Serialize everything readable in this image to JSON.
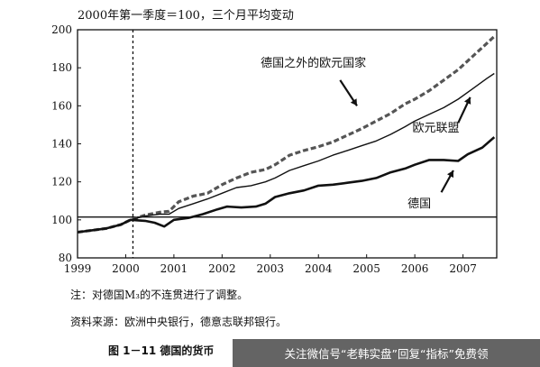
{
  "chart_data": {
    "type": "line",
    "title": "2000年第一季度＝100，三个月平均变动",
    "x_ticks": [
      "1999",
      "2000",
      "2001",
      "2002",
      "2003",
      "2004",
      "2005",
      "2006",
      "2007"
    ],
    "y_ticks": [
      "200",
      "180",
      "160",
      "140",
      "120",
      "100",
      "80"
    ],
    "xlim": [
      1999.0,
      2007.7
    ],
    "ylim": [
      80,
      200
    ],
    "reference_line_y": 101.5,
    "vertical_marker_x": 2000.15,
    "series": [
      {
        "name": "德国之外的欧元国家",
        "style": "dashed-bold",
        "color": "#555555",
        "points": [
          [
            1999.0,
            93.5
          ],
          [
            1999.3,
            94.5
          ],
          [
            1999.6,
            95.5
          ],
          [
            1999.9,
            97.5
          ],
          [
            2000.1,
            100.0
          ],
          [
            2000.4,
            102.5
          ],
          [
            2000.7,
            104.0
          ],
          [
            2000.9,
            104.5
          ],
          [
            2001.1,
            109.5
          ],
          [
            2001.4,
            112.5
          ],
          [
            2001.7,
            114.0
          ],
          [
            2002.0,
            118.5
          ],
          [
            2002.3,
            122.0
          ],
          [
            2002.6,
            125.0
          ],
          [
            2002.9,
            126.5
          ],
          [
            2003.1,
            129.0
          ],
          [
            2003.4,
            134.0
          ],
          [
            2003.7,
            136.5
          ],
          [
            2004.0,
            138.5
          ],
          [
            2004.3,
            141.0
          ],
          [
            2004.6,
            144.5
          ],
          [
            2004.9,
            148.0
          ],
          [
            2005.2,
            152.0
          ],
          [
            2005.5,
            156.0
          ],
          [
            2005.8,
            161.0
          ],
          [
            2006.0,
            163.5
          ],
          [
            2006.3,
            168.0
          ],
          [
            2006.6,
            173.5
          ],
          [
            2006.9,
            179.0
          ],
          [
            2007.2,
            186.0
          ],
          [
            2007.5,
            193.0
          ],
          [
            2007.65,
            196.5
          ]
        ]
      },
      {
        "name": "欧元联盟",
        "style": "solid-thin",
        "color": "#111111",
        "points": [
          [
            1999.0,
            93.5
          ],
          [
            1999.3,
            94.5
          ],
          [
            1999.6,
            95.5
          ],
          [
            1999.9,
            97.5
          ],
          [
            2000.1,
            100.0
          ],
          [
            2000.4,
            102.0
          ],
          [
            2000.7,
            103.0
          ],
          [
            2000.9,
            103.0
          ],
          [
            2001.1,
            106.0
          ],
          [
            2001.4,
            108.5
          ],
          [
            2001.7,
            111.0
          ],
          [
            2002.0,
            114.0
          ],
          [
            2002.3,
            117.0
          ],
          [
            2002.6,
            118.0
          ],
          [
            2002.9,
            120.0
          ],
          [
            2003.1,
            122.0
          ],
          [
            2003.4,
            126.0
          ],
          [
            2003.7,
            128.5
          ],
          [
            2004.0,
            131.0
          ],
          [
            2004.3,
            134.0
          ],
          [
            2004.6,
            136.5
          ],
          [
            2004.9,
            139.0
          ],
          [
            2005.2,
            141.5
          ],
          [
            2005.5,
            145.0
          ],
          [
            2005.8,
            149.0
          ],
          [
            2006.0,
            152.0
          ],
          [
            2006.3,
            155.5
          ],
          [
            2006.6,
            159.0
          ],
          [
            2006.9,
            163.5
          ],
          [
            2007.2,
            169.0
          ],
          [
            2007.5,
            174.5
          ],
          [
            2007.65,
            177.0
          ]
        ]
      },
      {
        "name": "德国",
        "style": "solid-bold",
        "color": "#111111",
        "points": [
          [
            1999.0,
            93.5
          ],
          [
            1999.3,
            94.5
          ],
          [
            1999.6,
            95.5
          ],
          [
            1999.9,
            97.5
          ],
          [
            2000.1,
            100.0
          ],
          [
            2000.4,
            99.5
          ],
          [
            2000.6,
            98.5
          ],
          [
            2000.8,
            96.5
          ],
          [
            2001.0,
            100.0
          ],
          [
            2001.3,
            101.0
          ],
          [
            2001.6,
            103.0
          ],
          [
            2001.9,
            105.5
          ],
          [
            2002.1,
            107.0
          ],
          [
            2002.4,
            106.5
          ],
          [
            2002.7,
            107.0
          ],
          [
            2002.9,
            108.5
          ],
          [
            2003.1,
            112.0
          ],
          [
            2003.4,
            114.0
          ],
          [
            2003.7,
            115.5
          ],
          [
            2004.0,
            118.0
          ],
          [
            2004.3,
            118.5
          ],
          [
            2004.6,
            119.5
          ],
          [
            2004.9,
            120.5
          ],
          [
            2005.2,
            122.0
          ],
          [
            2005.5,
            125.0
          ],
          [
            2005.8,
            127.0
          ],
          [
            2006.0,
            129.0
          ],
          [
            2006.3,
            131.5
          ],
          [
            2006.6,
            131.5
          ],
          [
            2006.9,
            131.0
          ],
          [
            2007.1,
            134.5
          ],
          [
            2007.4,
            138.0
          ],
          [
            2007.65,
            143.5
          ]
        ]
      }
    ],
    "annotations": [
      {
        "text": "德国之外的欧元国家",
        "series": "德国之外的欧元国家"
      },
      {
        "text": "欧元联盟",
        "series": "欧元联盟"
      },
      {
        "text": "德国",
        "series": "德国"
      }
    ]
  },
  "notes": {
    "note1": "注：对德国M₃的不连贯进行了调整。",
    "source": "资料来源：欧洲中央银行，德意志联邦银行。"
  },
  "caption": "图 1－11   德国的货币",
  "watermark": "关注微信号“老韩实盘”回复“指标”免费领"
}
